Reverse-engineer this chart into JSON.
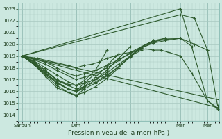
{
  "xlabel": "Pression niveau de la mer( hPa )",
  "bg_color": "#cce8e0",
  "grid_color": "#a8c8c0",
  "line_color": "#2d5a2d",
  "ylim": [
    1013.5,
    1023.5
  ],
  "yticks": [
    1014,
    1015,
    1016,
    1017,
    1018,
    1019,
    1020,
    1021,
    1022,
    1023
  ],
  "xlim": [
    0,
    260
  ],
  "day_positions": [
    5,
    75,
    145,
    210,
    245
  ],
  "day_labels": [
    "Sarbun",
    "Dim",
    "",
    "Mar",
    "Mer"
  ],
  "series": [
    {
      "x": [
        5,
        265
      ],
      "y": [
        1019,
        1014.5
      ]
    },
    {
      "x": [
        5,
        265
      ],
      "y": [
        1019,
        1015.2
      ]
    },
    {
      "x": [
        5,
        210,
        245,
        258
      ],
      "y": [
        1019,
        1023.0,
        1015.2,
        1014.5
      ]
    },
    {
      "x": [
        5,
        210,
        228,
        245,
        258
      ],
      "y": [
        1019,
        1022.5,
        1022.2,
        1019.5,
        1014.8
      ]
    },
    {
      "x": [
        5,
        25,
        45,
        65,
        75,
        85,
        95,
        105,
        115,
        125,
        135,
        145,
        155,
        165,
        175,
        185,
        195,
        210,
        225,
        245,
        258
      ],
      "y": [
        1019,
        1018.8,
        1018.5,
        1018.2,
        1018.0,
        1018.2,
        1018.3,
        1018.5,
        1018.8,
        1019.0,
        1019.2,
        1019.3,
        1019.5,
        1019.6,
        1019.5,
        1019.5,
        1019.3,
        1019.0,
        1017.5,
        1015.2,
        1014.6
      ]
    },
    {
      "x": [
        5,
        20,
        35,
        50,
        65,
        75,
        85,
        100,
        115,
        130,
        145,
        160,
        175,
        190,
        210,
        228,
        245
      ],
      "y": [
        1019,
        1018.8,
        1018.5,
        1018.0,
        1017.5,
        1017.3,
        1017.5,
        1017.8,
        1018.2,
        1018.7,
        1019.2,
        1019.7,
        1020.1,
        1020.3,
        1020.5,
        1020.0,
        1019.5
      ]
    },
    {
      "x": [
        5,
        20,
        35,
        50,
        65,
        75,
        85,
        100,
        115,
        130,
        145,
        160,
        175,
        190,
        210,
        225
      ],
      "y": [
        1019,
        1018.7,
        1018.3,
        1017.8,
        1017.3,
        1017.0,
        1017.2,
        1017.5,
        1018.0,
        1018.6,
        1019.3,
        1019.8,
        1020.2,
        1020.4,
        1020.5,
        1019.8
      ]
    },
    {
      "x": [
        5,
        20,
        35,
        50,
        65,
        75,
        85,
        100,
        115,
        130,
        145,
        160,
        175,
        190,
        210
      ],
      "y": [
        1019,
        1018.6,
        1018.0,
        1017.4,
        1016.8,
        1016.5,
        1016.7,
        1017.0,
        1017.6,
        1018.3,
        1019.0,
        1019.7,
        1020.2,
        1020.5,
        1020.5
      ]
    },
    {
      "x": [
        5,
        20,
        35,
        50,
        65,
        75,
        85,
        100,
        115,
        130,
        145,
        160,
        175,
        190
      ],
      "y": [
        1019,
        1018.5,
        1017.8,
        1017.0,
        1016.5,
        1016.2,
        1016.4,
        1016.8,
        1017.4,
        1018.1,
        1018.9,
        1019.8,
        1020.3,
        1020.5
      ]
    },
    {
      "x": [
        5,
        20,
        35,
        50,
        65,
        75,
        85,
        100,
        115,
        130,
        145,
        160,
        175
      ],
      "y": [
        1019,
        1018.4,
        1017.6,
        1016.8,
        1016.2,
        1016.0,
        1016.2,
        1016.7,
        1017.3,
        1018.1,
        1019.0,
        1019.8,
        1020.3
      ]
    },
    {
      "x": [
        5,
        20,
        35,
        50,
        65,
        75,
        85,
        100,
        115,
        130,
        145,
        160
      ],
      "y": [
        1019,
        1018.3,
        1017.4,
        1016.5,
        1015.9,
        1015.7,
        1015.9,
        1016.4,
        1017.1,
        1018.0,
        1019.0,
        1019.5
      ]
    },
    {
      "x": [
        5,
        20,
        35,
        50,
        65,
        75,
        85,
        100,
        115,
        130,
        145
      ],
      "y": [
        1019,
        1018.3,
        1017.5,
        1016.7,
        1016.2,
        1016.0,
        1016.3,
        1017.0,
        1017.8,
        1018.8,
        1019.8
      ]
    },
    {
      "x": [
        5,
        20,
        35,
        50,
        65,
        75,
        85,
        100,
        115,
        130
      ],
      "y": [
        1019,
        1018.3,
        1017.5,
        1016.7,
        1016.2,
        1016.0,
        1016.4,
        1017.2,
        1018.2,
        1019.2
      ]
    },
    {
      "x": [
        5,
        20,
        35,
        50,
        65,
        75,
        85,
        100,
        115
      ],
      "y": [
        1019,
        1018.3,
        1017.7,
        1017.0,
        1016.6,
        1016.5,
        1016.9,
        1017.8,
        1019.5
      ]
    },
    {
      "x": [
        5,
        20,
        35,
        50,
        65,
        75,
        85,
        100
      ],
      "y": [
        1019,
        1018.5,
        1017.6,
        1016.7,
        1016.2,
        1016.0,
        1016.7,
        1017.5
      ]
    },
    {
      "x": [
        5,
        20,
        35,
        50,
        65,
        75,
        85
      ],
      "y": [
        1019,
        1018.3,
        1017.3,
        1016.3,
        1015.9,
        1015.6,
        1016.2
      ]
    },
    {
      "x": [
        5,
        20,
        35,
        50,
        65
      ],
      "y": [
        1019.0,
        1018.5,
        1017.8,
        1016.9,
        1016.5
      ]
    }
  ]
}
